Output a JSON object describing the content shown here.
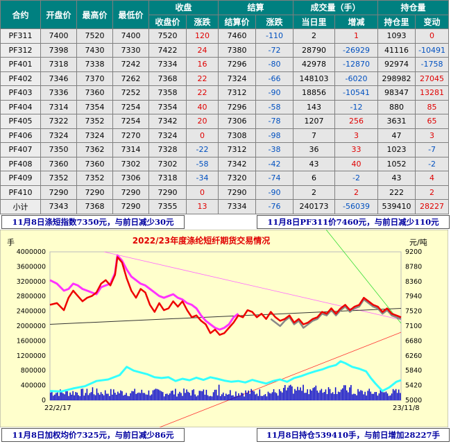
{
  "table": {
    "groups": [
      "合约",
      "开盘价",
      "最高价",
      "最低价",
      "收盘",
      "结算",
      "成交量（手）",
      "持仓量"
    ],
    "subheaders": [
      "收盘价",
      "涨跌",
      "结算价",
      "涨跌",
      "当日里",
      "增减",
      "持仓里",
      "变动"
    ],
    "rows": [
      [
        "PF311",
        "7400",
        "7520",
        "7400",
        "7520",
        "120",
        "7460",
        "-110",
        "2",
        "1",
        "1093",
        "0"
      ],
      [
        "PF312",
        "7398",
        "7430",
        "7330",
        "7422",
        "24",
        "7380",
        "-72",
        "28790",
        "-26929",
        "41116",
        "-10491"
      ],
      [
        "PF401",
        "7318",
        "7338",
        "7242",
        "7334",
        "16",
        "7296",
        "-80",
        "42978",
        "-12870",
        "92974",
        "-1758"
      ],
      [
        "PF402",
        "7346",
        "7370",
        "7262",
        "7368",
        "22",
        "7324",
        "-66",
        "148103",
        "-6020",
        "298982",
        "27045"
      ],
      [
        "PF403",
        "7336",
        "7360",
        "7252",
        "7358",
        "22",
        "7312",
        "-90",
        "18856",
        "-10541",
        "98347",
        "13281"
      ],
      [
        "PF404",
        "7314",
        "7354",
        "7254",
        "7354",
        "40",
        "7296",
        "-58",
        "143",
        "-12",
        "880",
        "85"
      ],
      [
        "PF405",
        "7322",
        "7352",
        "7254",
        "7342",
        "20",
        "7306",
        "-78",
        "1207",
        "256",
        "3631",
        "65"
      ],
      [
        "PF406",
        "7324",
        "7324",
        "7270",
        "7324",
        "0",
        "7308",
        "-98",
        "7",
        "3",
        "47",
        "3"
      ],
      [
        "PF407",
        "7350",
        "7362",
        "7314",
        "7328",
        "-22",
        "7312",
        "-38",
        "36",
        "33",
        "1023",
        "-7"
      ],
      [
        "PF408",
        "7360",
        "7360",
        "7302",
        "7302",
        "-58",
        "7342",
        "-42",
        "43",
        "40",
        "1052",
        "-2"
      ],
      [
        "PF409",
        "7352",
        "7352",
        "7306",
        "7318",
        "-34",
        "7320",
        "-74",
        "6",
        "-2",
        "43",
        "4"
      ],
      [
        "PF410",
        "7290",
        "7290",
        "7290",
        "7290",
        "0",
        "7290",
        "-90",
        "2",
        "2",
        "222",
        "2"
      ],
      [
        "小计",
        "7343",
        "7368",
        "7290",
        "7355",
        "13",
        "7334",
        "-76",
        "240173",
        "-56039",
        "539410",
        "28227"
      ]
    ]
  },
  "bars": {
    "top_left": "11月8日涤短指数7350元，与前日减少30元",
    "top_right": "11月8日PF311价7460元，与前日减少110元",
    "bottom_left": "11月8日加权均价7325元，与前日减少86元",
    "bottom_right": "11月8日持仓539410手，与前日增加28227手"
  },
  "colors": {
    "header_bg": "#008080",
    "up": "#e00000",
    "down": "#0050c0",
    "chart_bg": "#ffffcc"
  },
  "chart_data": {
    "type": "line",
    "title": "2022/23年度涤纶短纤期货交易情况",
    "left_unit": "手",
    "right_unit": "元/吨",
    "left_ticks": [
      0,
      400000,
      800000,
      1200000,
      1600000,
      2000000,
      2400000,
      2800000,
      3200000,
      3600000,
      4000000
    ],
    "right_ticks": [
      5000,
      5420,
      5840,
      6260,
      6680,
      7100,
      7520,
      7940,
      8360,
      8780,
      9200
    ],
    "x_start_label": "22/2/17",
    "x_end_label": "23/11/8",
    "left_ylim": [
      0,
      4000000
    ],
    "right_ylim": [
      5000,
      9200
    ],
    "price_red": [
      [
        0,
        7700
      ],
      [
        3,
        7750
      ],
      [
        6,
        7550
      ],
      [
        8,
        7900
      ],
      [
        10,
        8100
      ],
      [
        12,
        7950
      ],
      [
        14,
        7800
      ],
      [
        16,
        7900
      ],
      [
        18,
        7950
      ],
      [
        20,
        8050
      ],
      [
        22,
        8300
      ],
      [
        24,
        8400
      ],
      [
        26,
        8250
      ],
      [
        28,
        8550
      ],
      [
        29,
        9050
      ],
      [
        31,
        8900
      ],
      [
        33,
        8450
      ],
      [
        35,
        8100
      ],
      [
        37,
        7900
      ],
      [
        39,
        8150
      ],
      [
        41,
        8050
      ],
      [
        43,
        7700
      ],
      [
        45,
        7500
      ],
      [
        47,
        7750
      ],
      [
        49,
        7550
      ],
      [
        51,
        7600
      ],
      [
        53,
        7800
      ],
      [
        55,
        7650
      ],
      [
        57,
        7800
      ],
      [
        59,
        7550
      ],
      [
        61,
        7350
      ],
      [
        63,
        7400
      ],
      [
        65,
        7250
      ],
      [
        67,
        7150
      ],
      [
        69,
        6900
      ],
      [
        71,
        7000
      ],
      [
        73,
        6850
      ],
      [
        75,
        6900
      ],
      [
        77,
        7050
      ],
      [
        79,
        7200
      ],
      [
        81,
        7400
      ],
      [
        83,
        7350
      ],
      [
        85,
        7550
      ],
      [
        87,
        7500
      ],
      [
        89,
        7350
      ],
      [
        91,
        7450
      ],
      [
        93,
        7300
      ],
      [
        95,
        7500
      ],
      [
        97,
        7350
      ],
      [
        99,
        7250
      ],
      [
        101,
        7300
      ],
      [
        103,
        7400
      ],
      [
        105,
        7200
      ],
      [
        107,
        7300
      ],
      [
        109,
        7150
      ],
      [
        111,
        7200
      ],
      [
        113,
        7300
      ],
      [
        115,
        7350
      ],
      [
        117,
        7500
      ],
      [
        119,
        7450
      ],
      [
        121,
        7600
      ],
      [
        123,
        7450
      ],
      [
        125,
        7600
      ],
      [
        127,
        7700
      ],
      [
        129,
        7550
      ],
      [
        131,
        7650
      ],
      [
        133,
        7700
      ],
      [
        135,
        7900
      ],
      [
        137,
        7800
      ],
      [
        139,
        7700
      ],
      [
        141,
        7650
      ],
      [
        143,
        7500
      ],
      [
        145,
        7600
      ],
      [
        147,
        7450
      ],
      [
        149,
        7400
      ],
      [
        151,
        7350
      ]
    ],
    "price_magenta": [
      [
        0,
        8400
      ],
      [
        3,
        8300
      ],
      [
        6,
        8100
      ],
      [
        8,
        8150
      ],
      [
        10,
        8300
      ],
      [
        12,
        8250
      ],
      [
        14,
        8150
      ],
      [
        16,
        8100
      ],
      [
        18,
        8050
      ],
      [
        20,
        8000
      ],
      [
        22,
        8200
      ],
      [
        24,
        8250
      ],
      [
        26,
        8300
      ],
      [
        28,
        8600
      ],
      [
        29,
        9100
      ],
      [
        31,
        8950
      ],
      [
        33,
        8700
      ],
      [
        35,
        8500
      ],
      [
        37,
        8400
      ],
      [
        39,
        8300
      ],
      [
        41,
        8250
      ],
      [
        43,
        8150
      ],
      [
        45,
        8050
      ],
      [
        47,
        7950
      ],
      [
        49,
        7900
      ],
      [
        51,
        7950
      ],
      [
        53,
        8000
      ],
      [
        55,
        7900
      ],
      [
        57,
        7850
      ],
      [
        59,
        7750
      ],
      [
        61,
        7700
      ],
      [
        63,
        7600
      ],
      [
        65,
        7400
      ],
      [
        67,
        7250
      ],
      [
        69,
        7150
      ],
      [
        71,
        7050
      ],
      [
        73,
        7000
      ],
      [
        75,
        7050
      ],
      [
        77,
        7150
      ],
      [
        79,
        7350
      ],
      [
        81,
        7450
      ]
    ],
    "price_gray": [
      [
        95,
        7300
      ],
      [
        97,
        7200
      ],
      [
        99,
        7100
      ],
      [
        101,
        7250
      ],
      [
        103,
        7350
      ],
      [
        105,
        7150
      ],
      [
        107,
        7250
      ],
      [
        109,
        7050
      ],
      [
        111,
        7150
      ],
      [
        113,
        7250
      ],
      [
        115,
        7300
      ],
      [
        117,
        7450
      ],
      [
        119,
        7400
      ],
      [
        121,
        7550
      ],
      [
        123,
        7400
      ],
      [
        125,
        7550
      ],
      [
        127,
        7650
      ],
      [
        129,
        7500
      ],
      [
        131,
        7600
      ],
      [
        133,
        7650
      ],
      [
        135,
        7850
      ],
      [
        137,
        7750
      ],
      [
        139,
        7650
      ],
      [
        141,
        7600
      ],
      [
        143,
        7450
      ],
      [
        145,
        7550
      ],
      [
        147,
        7400
      ],
      [
        149,
        7350
      ],
      [
        151,
        7300
      ]
    ],
    "oi_cyan": [
      [
        0,
        250000
      ],
      [
        5,
        240000
      ],
      [
        10,
        320000
      ],
      [
        15,
        380000
      ],
      [
        20,
        520000
      ],
      [
        25,
        560000
      ],
      [
        30,
        680000
      ],
      [
        33,
        900000
      ],
      [
        36,
        800000
      ],
      [
        39,
        750000
      ],
      [
        42,
        700000
      ],
      [
        45,
        620000
      ],
      [
        48,
        600000
      ],
      [
        51,
        620000
      ],
      [
        54,
        520000
      ],
      [
        57,
        580000
      ],
      [
        60,
        540000
      ],
      [
        63,
        610000
      ],
      [
        66,
        550000
      ],
      [
        69,
        620000
      ],
      [
        72,
        580000
      ],
      [
        75,
        530000
      ],
      [
        78,
        500000
      ],
      [
        81,
        520000
      ],
      [
        84,
        480000
      ],
      [
        87,
        550000
      ],
      [
        90,
        500000
      ],
      [
        93,
        450000
      ],
      [
        96,
        520000
      ],
      [
        99,
        560000
      ],
      [
        102,
        500000
      ],
      [
        105,
        600000
      ],
      [
        108,
        650000
      ],
      [
        111,
        720000
      ],
      [
        114,
        780000
      ],
      [
        117,
        830000
      ],
      [
        120,
        900000
      ],
      [
        123,
        950000
      ],
      [
        125,
        1050000
      ],
      [
        127,
        1000000
      ],
      [
        130,
        900000
      ],
      [
        133,
        850000
      ],
      [
        136,
        780000
      ],
      [
        138,
        600000
      ],
      [
        140,
        450000
      ],
      [
        143,
        250000
      ],
      [
        146,
        350000
      ],
      [
        149,
        500000
      ],
      [
        151,
        540000
      ]
    ],
    "x_points": 152
  }
}
